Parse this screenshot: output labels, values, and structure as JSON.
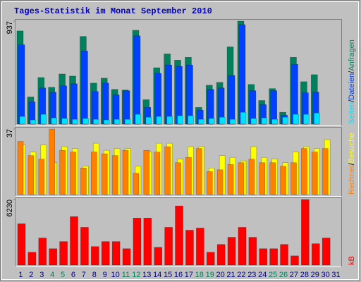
{
  "title": "Tages-Statistik im Monat September 2010",
  "chart_data": [
    {
      "type": "bar",
      "ylim": [
        0,
        937
      ],
      "yticks": [
        937
      ],
      "legend_separator": "/",
      "series": [
        {
          "name": "Anfragen",
          "color": "#00805c",
          "values": [
            848,
            247,
            424,
            335,
            456,
            437,
            798,
            373,
            418,
            316,
            310,
            854,
            222,
            513,
            639,
            582,
            608,
            152,
            354,
            380,
            703,
            937,
            361,
            215,
            323,
            108,
            608,
            386,
            450,
            null,
            null
          ]
        },
        {
          "name": "Dateien",
          "color": "#0040ff",
          "values": [
            722,
            203,
            329,
            291,
            348,
            367,
            665,
            297,
            373,
            266,
            304,
            804,
            152,
            462,
            538,
            525,
            538,
            127,
            316,
            329,
            443,
            905,
            304,
            177,
            304,
            82,
            544,
            285,
            291,
            null,
            null
          ]
        },
        {
          "name": "Seiten",
          "color": "#00e0ff",
          "values": [
            70,
            38,
            89,
            57,
            51,
            44,
            51,
            44,
            38,
            44,
            44,
            89,
            63,
            70,
            70,
            76,
            76,
            44,
            51,
            63,
            44,
            108,
            51,
            57,
            44,
            63,
            89,
            89,
            101,
            null,
            null
          ]
        }
      ]
    },
    {
      "type": "bar",
      "ylim": [
        0,
        37
      ],
      "yticks": [
        37
      ],
      "legend_separator": "/",
      "series": [
        {
          "name": "Besuche",
          "color": "#ffff00",
          "values": [
            28,
            24,
            28,
            18,
            27,
            26,
            16,
            29,
            25,
            26,
            26,
            16,
            24,
            29,
            29,
            20,
            27,
            27,
            15,
            22,
            21,
            19,
            27,
            21,
            20,
            18,
            24,
            27,
            26,
            31,
            null
          ]
        },
        {
          "name": "Rechner",
          "color": "#ff8000",
          "values": [
            30,
            22,
            20,
            37,
            25,
            24,
            15,
            24,
            23,
            22,
            25,
            12,
            25,
            24,
            27,
            18,
            21,
            26,
            13,
            14,
            17,
            18,
            20,
            18,
            18,
            16,
            18,
            26,
            24,
            26,
            null
          ]
        }
      ]
    },
    {
      "type": "bar",
      "ylim": [
        0,
        6230
      ],
      "yticks": [
        6230
      ],
      "categories": [
        "1",
        "2",
        "3",
        "4",
        "5",
        "6",
        "7",
        "8",
        "9",
        "10",
        "11",
        "12",
        "13",
        "14",
        "15",
        "16",
        "17",
        "18",
        "19",
        "20",
        "21",
        "22",
        "23",
        "24",
        "25",
        "26",
        "27",
        "28",
        "29",
        "30",
        "31"
      ],
      "label_color": "#000080",
      "highlight_color": "#00805c",
      "highlighted_categories": [
        3,
        4,
        10,
        11,
        17,
        18,
        24,
        25
      ],
      "series": [
        {
          "name": "kB",
          "color": "#ff0000",
          "values": [
            3927,
            1219,
            2573,
            1557,
            2234,
            4605,
            3588,
            1760,
            2234,
            2234,
            1557,
            4469,
            4469,
            1693,
            3588,
            5620,
            3317,
            3521,
            1219,
            1963,
            2641,
            3588,
            2641,
            1557,
            1557,
            1963,
            880,
            6230,
            2031,
            2573,
            null
          ]
        }
      ]
    }
  ]
}
